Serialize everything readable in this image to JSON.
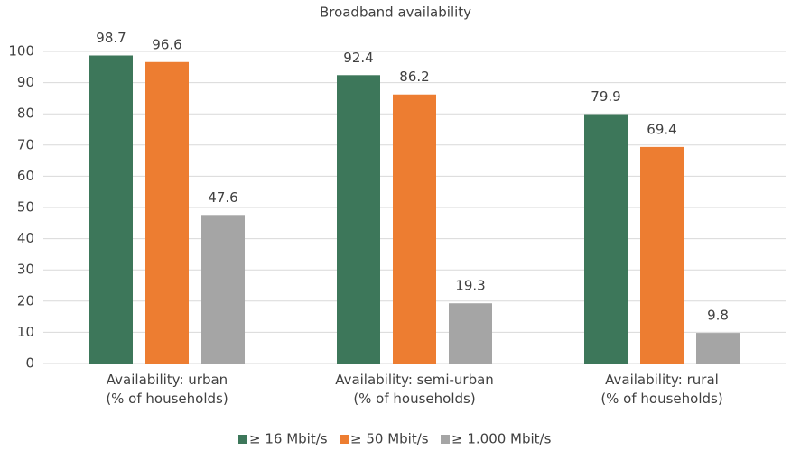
{
  "chart_data": {
    "type": "bar",
    "title": "Broadband availability",
    "categories": [
      "Availability: urban\n(% of households)",
      "Availability: semi-urban\n(% of households)",
      "Availability: rural\n(% of households)"
    ],
    "series": [
      {
        "name": "≥ 16 Mbit/s",
        "color": "#3d775a",
        "values": [
          98.7,
          92.4,
          79.9
        ]
      },
      {
        "name": "≥ 50 Mbit/s",
        "color": "#ed7d31",
        "values": [
          96.6,
          86.2,
          69.4
        ]
      },
      {
        "name": "≥ 1.000 Mbit/s",
        "color": "#a5a5a5",
        "values": [
          47.6,
          19.3,
          9.8
        ]
      }
    ],
    "ylim": [
      0,
      100
    ],
    "yticks": [
      0,
      10,
      20,
      30,
      40,
      50,
      60,
      70,
      80,
      90,
      100
    ],
    "grid": true,
    "legend": "bottom"
  }
}
